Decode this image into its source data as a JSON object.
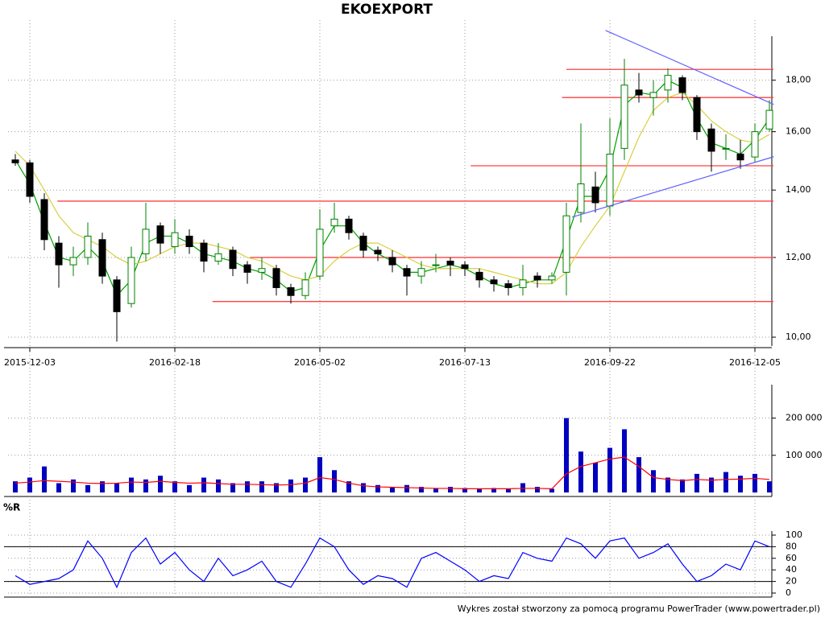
{
  "chart_data": [
    {
      "type": "candlestick",
      "title": "EKOEXPORT",
      "categories": [
        null,
        "2015-12-03",
        null,
        null,
        null,
        null,
        null,
        null,
        null,
        null,
        null,
        "2016-02-18",
        null,
        null,
        null,
        null,
        null,
        null,
        null,
        null,
        null,
        "2016-05-02",
        null,
        null,
        null,
        null,
        null,
        null,
        null,
        null,
        null,
        "2016-07-13",
        null,
        null,
        null,
        null,
        null,
        null,
        null,
        null,
        null,
        "2016-09-22",
        null,
        null,
        null,
        null,
        null,
        null,
        null,
        null,
        null,
        "2016-12-05",
        null
      ],
      "open": [
        15.0,
        14.9,
        13.7,
        12.4,
        11.8,
        12.0,
        12.5,
        11.4,
        10.8,
        12.1,
        12.9,
        12.3,
        12.6,
        12.4,
        11.9,
        12.2,
        11.8,
        11.6,
        11.7,
        11.2,
        11.0,
        11.5,
        12.9,
        13.1,
        12.6,
        12.2,
        12.0,
        11.7,
        11.5,
        11.8,
        11.9,
        11.8,
        11.6,
        11.4,
        11.3,
        11.2,
        11.5,
        11.4,
        11.6,
        13.3,
        14.1,
        13.5,
        15.4,
        17.6,
        17.3,
        17.6,
        18.1,
        17.3,
        16.1,
        15.4,
        15.2,
        15.1,
        16.1
      ],
      "high": [
        15.2,
        15.0,
        13.9,
        12.6,
        12.3,
        13.0,
        12.7,
        11.5,
        12.3,
        13.6,
        13.0,
        13.1,
        12.8,
        12.5,
        12.4,
        12.3,
        11.9,
        12.0,
        11.8,
        11.3,
        11.6,
        13.4,
        13.6,
        13.2,
        12.7,
        12.3,
        12.2,
        11.8,
        11.9,
        12.1,
        12.0,
        11.9,
        11.7,
        11.5,
        11.4,
        11.8,
        11.6,
        11.6,
        13.6,
        16.3,
        14.6,
        16.5,
        18.9,
        18.3,
        18.0,
        18.5,
        18.2,
        17.4,
        16.3,
        15.9,
        15.7,
        16.3,
        17.2
      ],
      "low": [
        14.8,
        13.6,
        12.2,
        11.2,
        11.5,
        11.8,
        11.3,
        9.9,
        10.7,
        11.9,
        12.1,
        12.1,
        12.1,
        11.6,
        11.8,
        11.5,
        11.3,
        11.4,
        11.0,
        10.8,
        10.9,
        11.4,
        12.7,
        12.5,
        12.0,
        11.9,
        11.6,
        11.0,
        11.3,
        11.6,
        11.5,
        11.5,
        11.2,
        11.1,
        11.0,
        11.0,
        11.2,
        11.3,
        11.0,
        13.0,
        13.3,
        13.2,
        15.0,
        17.1,
        16.6,
        17.1,
        17.2,
        15.7,
        14.6,
        15.0,
        14.7,
        14.9,
        16.0
      ],
      "close": [
        14.9,
        13.8,
        12.5,
        11.8,
        12.0,
        12.6,
        11.5,
        10.6,
        12.0,
        12.8,
        12.4,
        12.7,
        12.3,
        11.9,
        12.1,
        11.7,
        11.6,
        11.7,
        11.2,
        11.0,
        11.4,
        12.8,
        13.1,
        12.7,
        12.2,
        12.1,
        11.8,
        11.5,
        11.7,
        11.8,
        11.8,
        11.7,
        11.4,
        11.3,
        11.2,
        11.4,
        11.4,
        11.5,
        13.2,
        14.2,
        13.6,
        15.2,
        17.8,
        17.4,
        17.5,
        18.2,
        17.5,
        16.0,
        15.3,
        15.4,
        15.0,
        16.0,
        16.8
      ],
      "up_color": "#008000",
      "down_color": "#000000",
      "series": [
        {
          "color": "#00a000",
          "values": [
            15.0,
            14.2,
            13.0,
            12.0,
            11.9,
            12.3,
            11.9,
            11.0,
            11.4,
            12.4,
            12.6,
            12.6,
            12.4,
            12.1,
            12.0,
            11.9,
            11.7,
            11.6,
            11.4,
            11.1,
            11.2,
            12.2,
            12.9,
            12.9,
            12.4,
            12.1,
            11.9,
            11.6,
            11.6,
            11.7,
            11.8,
            11.7,
            11.5,
            11.3,
            11.2,
            11.3,
            11.4,
            11.4,
            12.5,
            13.8,
            13.8,
            14.7,
            17.0,
            17.5,
            17.4,
            18.0,
            17.7,
            16.5,
            15.6,
            15.4,
            15.2,
            15.7,
            16.5
          ]
        },
        {
          "color": "#d8d040",
          "values": [
            15.3,
            14.8,
            14.0,
            13.2,
            12.7,
            12.5,
            12.3,
            12.0,
            11.8,
            11.9,
            12.1,
            12.3,
            12.4,
            12.4,
            12.3,
            12.2,
            12.0,
            11.9,
            11.7,
            11.5,
            11.4,
            11.5,
            11.9,
            12.2,
            12.4,
            12.4,
            12.2,
            12.0,
            11.8,
            11.7,
            11.7,
            11.7,
            11.7,
            11.6,
            11.5,
            11.4,
            11.3,
            11.3,
            11.6,
            12.3,
            12.9,
            13.5,
            14.6,
            15.8,
            16.8,
            17.3,
            17.5,
            17.0,
            16.4,
            16.0,
            15.7,
            15.6,
            15.9
          ]
        }
      ],
      "log_scale": true,
      "grid": true,
      "ylim": [
        9.8,
        20.2
      ],
      "yticks": [
        {
          "value": 10,
          "label": "10,00"
        },
        {
          "value": 12,
          "label": "12,00"
        },
        {
          "value": 14,
          "label": "14,00"
        },
        {
          "value": 16,
          "label": "16,00"
        },
        {
          "value": 18,
          "label": "18,00"
        }
      ],
      "levels": [
        {
          "value": 18.45,
          "from": 38,
          "color": "#ff4040"
        },
        {
          "value": 17.3,
          "from": 37.7,
          "color": "#ff4040"
        },
        {
          "value": 14.8,
          "from": 31.4,
          "color": "#ff4040"
        },
        {
          "value": 13.65,
          "from": 2.9,
          "color": "#ff4040"
        },
        {
          "value": 12.0,
          "from": 16.2,
          "color": "#ff4040"
        },
        {
          "value": 10.85,
          "from": 13.6,
          "color": "#ff4040"
        }
      ],
      "trend_lines": [
        {
          "x": [
            40.7,
            52.3
          ],
          "y": [
            20.17,
            17.03
          ],
          "color": "#6060ff"
        },
        {
          "x": [
            38.4,
            52.3
          ],
          "y": [
            13.16,
            15.11
          ],
          "color": "#6060ff"
        }
      ]
    },
    {
      "type": "bar",
      "color": "#0000c0",
      "values": [
        30000,
        40000,
        70000,
        25000,
        35000,
        20000,
        30000,
        25000,
        40000,
        35000,
        45000,
        30000,
        20000,
        40000,
        35000,
        25000,
        30000,
        30000,
        25000,
        35000,
        40000,
        95000,
        60000,
        30000,
        25000,
        20000,
        15000,
        20000,
        15000,
        12000,
        15000,
        12000,
        10000,
        12000,
        10000,
        25000,
        15000,
        10000,
        200000,
        110000,
        80000,
        120000,
        170000,
        95000,
        60000,
        40000,
        35000,
        50000,
        40000,
        55000,
        45000,
        50000,
        30000
      ],
      "series": [
        {
          "color": "#ff0000",
          "values": [
            25000,
            28000,
            32000,
            30000,
            28000,
            25000,
            24000,
            25000,
            28000,
            27000,
            30000,
            27000,
            25000,
            26000,
            24000,
            22000,
            22000,
            21000,
            20000,
            21000,
            25000,
            40000,
            35000,
            25000,
            18000,
            15000,
            14000,
            13000,
            12000,
            11000,
            11000,
            10000,
            10000,
            10000,
            10000,
            11000,
            11000,
            10000,
            50000,
            70000,
            80000,
            90000,
            95000,
            70000,
            40000,
            35000,
            32000,
            35000,
            33000,
            35000,
            36000,
            38000,
            35000
          ]
        }
      ],
      "grid": true,
      "ylim": [
        0,
        290000
      ],
      "yticks": [
        {
          "value": 100000,
          "label": "100 000"
        },
        {
          "value": 200000,
          "label": "200 000"
        }
      ]
    },
    {
      "type": "line",
      "title": "%R",
      "color": "#0000ff",
      "values": [
        30,
        15,
        20,
        25,
        40,
        90,
        60,
        10,
        70,
        95,
        50,
        70,
        40,
        20,
        60,
        30,
        40,
        55,
        20,
        10,
        50,
        95,
        80,
        40,
        15,
        30,
        25,
        10,
        60,
        70,
        55,
        40,
        20,
        30,
        25,
        70,
        60,
        55,
        95,
        85,
        60,
        90,
        95,
        60,
        70,
        85,
        50,
        20,
        30,
        50,
        40,
        90,
        80
      ],
      "grid": true,
      "ylim": [
        0,
        100
      ],
      "yticks": [
        0,
        20,
        40,
        60,
        80,
        100
      ],
      "levels": [
        20,
        80
      ]
    }
  ],
  "footer": "Wykres został stworzony za pomocą programu PowerTrader (www.powertrader.pl)"
}
